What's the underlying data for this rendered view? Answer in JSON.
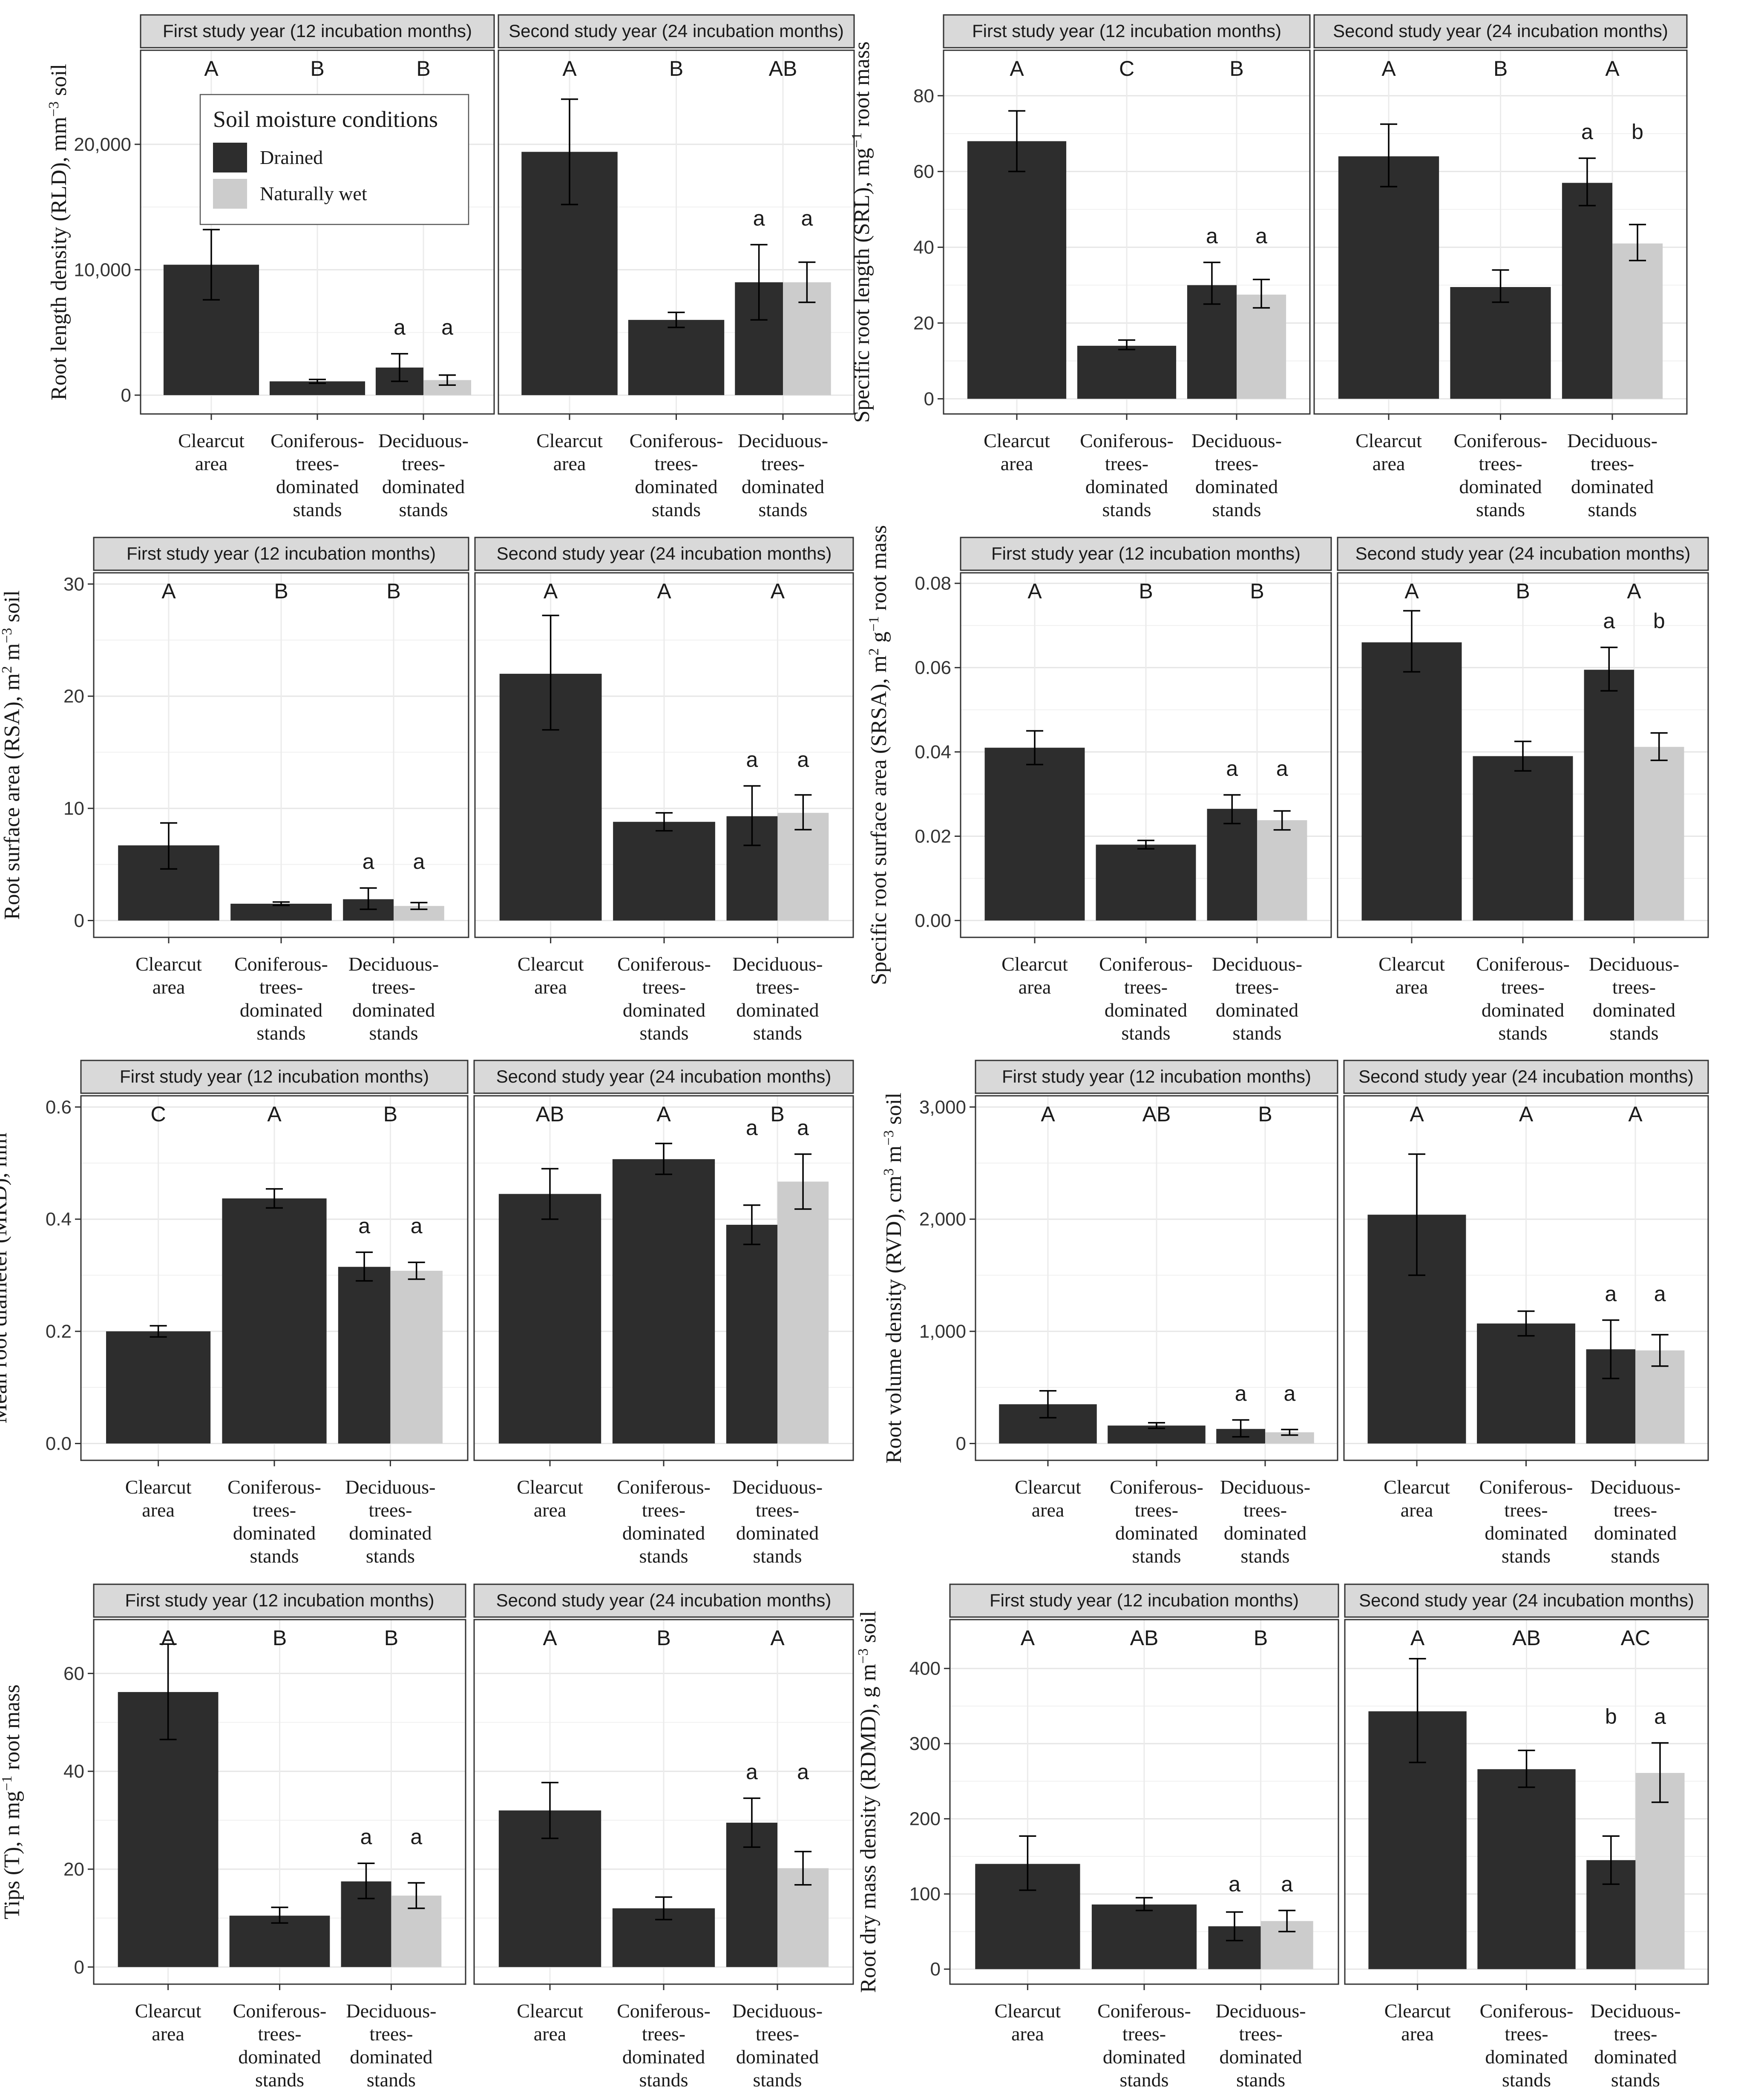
{
  "legend": {
    "title": "Soil moisture conditions",
    "items": [
      {
        "label": "Drained",
        "color": "#2d2d2d"
      },
      {
        "label": "Naturally wet",
        "color": "#cccccc"
      }
    ]
  },
  "facets": [
    "First study year (12 incubation months)",
    "Second study year (24 incubation months)"
  ],
  "categories": [
    [
      "Clearcut",
      "area"
    ],
    [
      "Coniferous-",
      "trees-",
      "dominated",
      "stands"
    ],
    [
      "Deciduous-",
      "trees-",
      "dominated",
      "stands"
    ]
  ],
  "chart_data": [
    {
      "type": "bar",
      "ylabel": "Root length density (RLD), mm⁻³ soil",
      "ylabel_parts": [
        [
          "Root length density (RLD), mm",
          ""
        ],
        [
          "−3",
          "sup"
        ],
        [
          " soil",
          ""
        ]
      ],
      "ylim": [
        -1500,
        27500
      ],
      "ticks": [
        0,
        10000,
        20000
      ],
      "tick_labels": [
        "0",
        "10,000",
        "20,000"
      ],
      "panels": [
        {
          "facet": 0,
          "letters": [
            "A",
            "B",
            "B"
          ],
          "drained": [
            {
              "v": 10400,
              "lo": 7600,
              "hi": 13200
            },
            {
              "v": 1100,
              "lo": 950,
              "hi": 1250
            },
            {
              "v": 2200,
              "lo": 1100,
              "hi": 3300
            }
          ],
          "wet": {
            "v": 1200,
            "lo": 800,
            "hi": 1600
          },
          "lower": [
            "a",
            "a"
          ]
        },
        {
          "facet": 1,
          "letters": [
            "A",
            "B",
            "AB"
          ],
          "drained": [
            {
              "v": 19400,
              "lo": 15200,
              "hi": 23600
            },
            {
              "v": 6000,
              "lo": 5400,
              "hi": 6600
            },
            {
              "v": 9000,
              "lo": 6000,
              "hi": 12000
            }
          ],
          "wet": {
            "v": 9000,
            "lo": 7400,
            "hi": 10600
          },
          "lower": [
            "a",
            "a"
          ]
        }
      ]
    },
    {
      "type": "bar",
      "ylabel": "Specific root length (SRL), mg⁻¹ root mass",
      "ylabel_parts": [
        [
          "Specific root length (SRL), mg",
          ""
        ],
        [
          "−1",
          "sup"
        ],
        [
          " root mass",
          ""
        ]
      ],
      "ylim": [
        -4,
        92
      ],
      "ticks": [
        0,
        20,
        40,
        60,
        80
      ],
      "tick_labels": [
        "0",
        "20",
        "40",
        "60",
        "80"
      ],
      "panels": [
        {
          "facet": 0,
          "letters": [
            "A",
            "C",
            "B"
          ],
          "drained": [
            {
              "v": 68,
              "lo": 60,
              "hi": 76
            },
            {
              "v": 14,
              "lo": 13,
              "hi": 15.5
            },
            {
              "v": 30,
              "lo": 25,
              "hi": 36
            }
          ],
          "wet": {
            "v": 27.5,
            "lo": 24,
            "hi": 31.5
          },
          "lower": [
            "a",
            "a"
          ]
        },
        {
          "facet": 1,
          "letters": [
            "A",
            "B",
            "A"
          ],
          "drained": [
            {
              "v": 64,
              "lo": 56,
              "hi": 72.5
            },
            {
              "v": 29.5,
              "lo": 25.5,
              "hi": 34
            },
            {
              "v": 57,
              "lo": 51,
              "hi": 63.5
            }
          ],
          "wet": {
            "v": 41,
            "lo": 36.5,
            "hi": 46
          },
          "lower": [
            "a",
            "b"
          ]
        }
      ]
    },
    {
      "type": "bar",
      "ylabel": "Root surface area (RSA), m² m⁻³ soil",
      "ylabel_parts": [
        [
          "Root surface area (RSA), m",
          ""
        ],
        [
          "2",
          "sup"
        ],
        [
          " m",
          ""
        ],
        [
          "−3",
          "sup"
        ],
        [
          " soil",
          ""
        ]
      ],
      "ylim": [
        -1.5,
        31
      ],
      "ticks": [
        0,
        10,
        20,
        30
      ],
      "tick_labels": [
        "0",
        "10",
        "20",
        "30"
      ],
      "panels": [
        {
          "facet": 0,
          "letters": [
            "A",
            "B",
            "B"
          ],
          "drained": [
            {
              "v": 6.7,
              "lo": 4.6,
              "hi": 8.7
            },
            {
              "v": 1.5,
              "lo": 1.35,
              "hi": 1.65
            },
            {
              "v": 1.9,
              "lo": 1.0,
              "hi": 2.9
            }
          ],
          "wet": {
            "v": 1.3,
            "lo": 1.0,
            "hi": 1.6
          },
          "lower": [
            "a",
            "a"
          ]
        },
        {
          "facet": 1,
          "letters": [
            "A",
            "A",
            "A"
          ],
          "drained": [
            {
              "v": 22,
              "lo": 17,
              "hi": 27.2
            },
            {
              "v": 8.8,
              "lo": 8.0,
              "hi": 9.6
            },
            {
              "v": 9.3,
              "lo": 6.7,
              "hi": 12
            }
          ],
          "wet": {
            "v": 9.6,
            "lo": 8.1,
            "hi": 11.2
          },
          "lower": [
            "a",
            "a"
          ]
        }
      ]
    },
    {
      "type": "bar",
      "ylabel": "Specific root surface area (SRSA), m² g⁻¹ root mass",
      "ylabel_parts": [
        [
          "Specific root surface area (SRSA), m",
          ""
        ],
        [
          "2",
          "sup"
        ],
        [
          " g",
          ""
        ],
        [
          "−1",
          "sup"
        ],
        [
          " root mass",
          ""
        ]
      ],
      "ylim": [
        -0.004,
        0.0825
      ],
      "ticks": [
        0,
        0.02,
        0.04,
        0.06,
        0.08
      ],
      "tick_labels": [
        "0.00",
        "0.02",
        "0.04",
        "0.06",
        "0.08"
      ],
      "panels": [
        {
          "facet": 0,
          "letters": [
            "A",
            "B",
            "B"
          ],
          "drained": [
            {
              "v": 0.041,
              "lo": 0.037,
              "hi": 0.045
            },
            {
              "v": 0.018,
              "lo": 0.017,
              "hi": 0.019
            },
            {
              "v": 0.0265,
              "lo": 0.023,
              "hi": 0.0298
            }
          ],
          "wet": {
            "v": 0.0238,
            "lo": 0.0215,
            "hi": 0.026
          },
          "lower": [
            "a",
            "a"
          ]
        },
        {
          "facet": 1,
          "letters": [
            "A",
            "B",
            "A"
          ],
          "drained": [
            {
              "v": 0.066,
              "lo": 0.059,
              "hi": 0.0735
            },
            {
              "v": 0.039,
              "lo": 0.0355,
              "hi": 0.0425
            },
            {
              "v": 0.0595,
              "lo": 0.0545,
              "hi": 0.0648
            }
          ],
          "wet": {
            "v": 0.0412,
            "lo": 0.038,
            "hi": 0.0445
          },
          "lower": [
            "a",
            "b"
          ]
        }
      ]
    },
    {
      "type": "bar",
      "ylabel": "Mean root diameter (MRD), mm",
      "ylabel_parts": [
        [
          "Mean root diameter (MRD), mm",
          ""
        ]
      ],
      "ylim": [
        -0.03,
        0.62
      ],
      "ticks": [
        0,
        0.2,
        0.4,
        0.6
      ],
      "tick_labels": [
        "0.0",
        "0.2",
        "0.4",
        "0.6"
      ],
      "panels": [
        {
          "facet": 0,
          "letters": [
            "C",
            "A",
            "B"
          ],
          "drained": [
            {
              "v": 0.2,
              "lo": 0.19,
              "hi": 0.21
            },
            {
              "v": 0.437,
              "lo": 0.42,
              "hi": 0.454
            },
            {
              "v": 0.315,
              "lo": 0.29,
              "hi": 0.341
            }
          ],
          "wet": {
            "v": 0.308,
            "lo": 0.293,
            "hi": 0.323
          },
          "lower": [
            "a",
            "a"
          ]
        },
        {
          "facet": 1,
          "letters": [
            "AB",
            "A",
            "B"
          ],
          "drained": [
            {
              "v": 0.445,
              "lo": 0.4,
              "hi": 0.49
            },
            {
              "v": 0.507,
              "lo": 0.48,
              "hi": 0.535
            },
            {
              "v": 0.39,
              "lo": 0.355,
              "hi": 0.425
            }
          ],
          "wet": {
            "v": 0.467,
            "lo": 0.418,
            "hi": 0.516
          },
          "lower": [
            "a",
            "a"
          ]
        }
      ]
    },
    {
      "type": "bar",
      "ylabel": "Root volume density (RVD), cm³ m⁻³ soil",
      "ylabel_parts": [
        [
          "Root volume density (RVD), cm",
          ""
        ],
        [
          "3",
          "sup"
        ],
        [
          " m",
          ""
        ],
        [
          "−3",
          "sup"
        ],
        [
          " soil",
          ""
        ]
      ],
      "ylim": [
        -150,
        3100
      ],
      "ticks": [
        0,
        1000,
        2000,
        3000
      ],
      "tick_labels": [
        "0",
        "1,000",
        "2,000",
        "3,000"
      ],
      "panels": [
        {
          "facet": 0,
          "letters": [
            "A",
            "AB",
            "B"
          ],
          "drained": [
            {
              "v": 350,
              "lo": 230,
              "hi": 470
            },
            {
              "v": 160,
              "lo": 135,
              "hi": 185
            },
            {
              "v": 130,
              "lo": 60,
              "hi": 210
            }
          ],
          "wet": {
            "v": 100,
            "lo": 75,
            "hi": 125
          },
          "lower": [
            "a",
            "a"
          ]
        },
        {
          "facet": 1,
          "letters": [
            "A",
            "A",
            "A"
          ],
          "drained": [
            {
              "v": 2040,
              "lo": 1500,
              "hi": 2580
            },
            {
              "v": 1070,
              "lo": 960,
              "hi": 1180
            },
            {
              "v": 840,
              "lo": 580,
              "hi": 1100
            }
          ],
          "wet": {
            "v": 830,
            "lo": 690,
            "hi": 970
          },
          "lower": [
            "a",
            "a"
          ]
        }
      ]
    },
    {
      "type": "bar",
      "ylabel": "Tips (T), n mg⁻¹ root mass",
      "ylabel_parts": [
        [
          "Tips (T), n mg",
          ""
        ],
        [
          "−1",
          "sup"
        ],
        [
          " root mass",
          ""
        ]
      ],
      "ylim": [
        -3.5,
        71
      ],
      "ticks": [
        0,
        20,
        40,
        60
      ],
      "tick_labels": [
        "0",
        "20",
        "40",
        "60"
      ],
      "panels": [
        {
          "facet": 0,
          "letters": [
            "A",
            "B",
            "B"
          ],
          "drained": [
            {
              "v": 56.2,
              "lo": 46.5,
              "hi": 66
            },
            {
              "v": 10.5,
              "lo": 9,
              "hi": 12.2
            },
            {
              "v": 17.5,
              "lo": 14,
              "hi": 21.2
            }
          ],
          "wet": {
            "v": 14.6,
            "lo": 12,
            "hi": 17.2
          },
          "lower": [
            "a",
            "a"
          ]
        },
        {
          "facet": 1,
          "letters": [
            "A",
            "B",
            "A"
          ],
          "drained": [
            {
              "v": 32,
              "lo": 26.3,
              "hi": 37.7
            },
            {
              "v": 12,
              "lo": 9.7,
              "hi": 14.3
            },
            {
              "v": 29.5,
              "lo": 24.5,
              "hi": 34.5
            }
          ],
          "wet": {
            "v": 20.2,
            "lo": 16.8,
            "hi": 23.6
          },
          "lower": [
            "a",
            "a"
          ]
        }
      ]
    },
    {
      "type": "bar",
      "ylabel": "Root dry mass density (RDMD), g m⁻³ soil",
      "ylabel_parts": [
        [
          "Root dry mass density (RDMD), g m",
          ""
        ],
        [
          "−3",
          "sup"
        ],
        [
          " soil",
          ""
        ]
      ],
      "ylim": [
        -20,
        465
      ],
      "ticks": [
        0,
        100,
        200,
        300,
        400
      ],
      "tick_labels": [
        "0",
        "100",
        "200",
        "300",
        "400"
      ],
      "panels": [
        {
          "facet": 0,
          "letters": [
            "A",
            "AB",
            "B"
          ],
          "drained": [
            {
              "v": 140,
              "lo": 105,
              "hi": 177
            },
            {
              "v": 86,
              "lo": 78,
              "hi": 95
            },
            {
              "v": 57,
              "lo": 38,
              "hi": 76
            }
          ],
          "wet": {
            "v": 64,
            "lo": 50,
            "hi": 78
          },
          "lower": [
            "a",
            "a"
          ]
        },
        {
          "facet": 1,
          "letters": [
            "A",
            "AB",
            "AC"
          ],
          "drained": [
            {
              "v": 343,
              "lo": 275,
              "hi": 413
            },
            {
              "v": 266,
              "lo": 242,
              "hi": 291
            },
            {
              "v": 145,
              "lo": 113,
              "hi": 177
            }
          ],
          "wet": {
            "v": 261,
            "lo": 222,
            "hi": 301
          },
          "lower": [
            "b",
            "a"
          ]
        }
      ]
    }
  ]
}
